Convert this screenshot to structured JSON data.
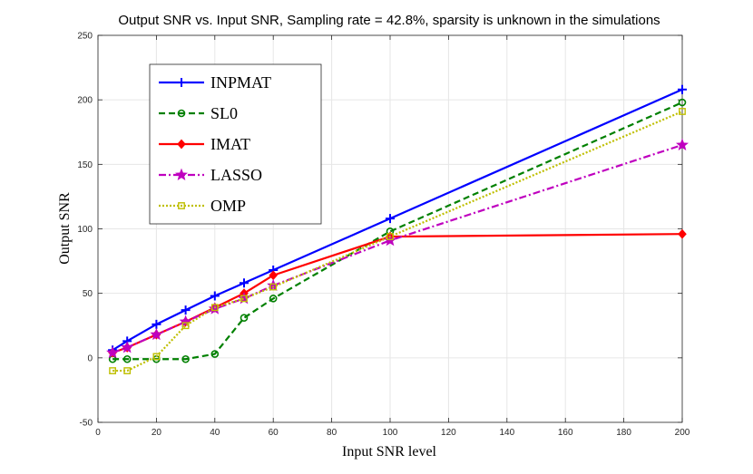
{
  "chart_data": {
    "type": "line",
    "title": "Output SNR vs. Input SNR, Sampling rate = 42.8%, sparsity is unknown in the simulations",
    "xlabel": "Input SNR level",
    "ylabel": "Output SNR",
    "xlim": [
      0,
      200
    ],
    "ylim": [
      -50,
      250
    ],
    "grid": true,
    "legend_position": "top-left",
    "x_tick_labels": [
      "0",
      "20",
      "40",
      "60",
      "80",
      "100",
      "120",
      "140",
      "160",
      "180",
      "200"
    ],
    "y_tick_labels": [
      "-50",
      "0",
      "50",
      "100",
      "150",
      "200",
      "250"
    ],
    "x_display": [
      5,
      10,
      20,
      30,
      40,
      50,
      60,
      100,
      200
    ],
    "series": [
      {
        "name": "INPMAT",
        "color": "#0000ff",
        "dash": "",
        "marker": "plus",
        "values": [
          6,
          13,
          26,
          37,
          48,
          58,
          68,
          108,
          208
        ]
      },
      {
        "name": "SL0",
        "color": "#008000",
        "dash": "7,4",
        "marker": "circle",
        "values": [
          -1,
          -1,
          -1,
          -1,
          3,
          31,
          46,
          98,
          198
        ]
      },
      {
        "name": "IMAT",
        "color": "#ff0000",
        "dash": "",
        "marker": "diamond",
        "values": [
          4,
          8,
          18,
          28,
          39,
          50,
          64,
          94,
          96
        ]
      },
      {
        "name": "LASSO",
        "color": "#bf00bf",
        "dash": "8,3,2,3",
        "marker": "star",
        "values": [
          4,
          8,
          18,
          28,
          38,
          46,
          56,
          91,
          165
        ]
      },
      {
        "name": "OMP",
        "color": "#bfbf00",
        "dash": "2,2",
        "marker": "square",
        "values": [
          -10,
          -10,
          1,
          25,
          39,
          46,
          55,
          94,
          191
        ]
      }
    ]
  }
}
